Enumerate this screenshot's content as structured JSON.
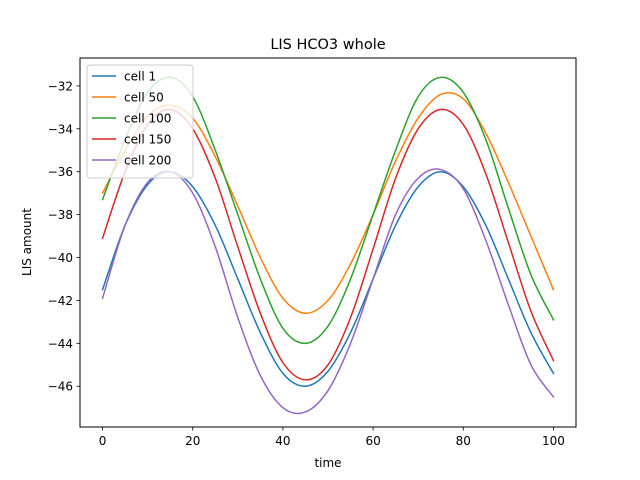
{
  "chart_data": {
    "type": "line",
    "title": "LIS HCO3 whole",
    "xlabel": "time",
    "ylabel": "LIS amount",
    "xlim": [
      -5,
      105
    ],
    "ylim": [
      -47.9,
      -30.7
    ],
    "xticks": [
      0,
      20,
      40,
      60,
      80,
      100
    ],
    "yticks": [
      -46,
      -44,
      -42,
      -40,
      -38,
      -36,
      -34,
      -32
    ],
    "legend_position": "top-left",
    "grid": false,
    "series": [
      {
        "name": "cell 1",
        "color": "#1f77b4",
        "x": [
          0,
          5,
          10,
          15,
          20,
          25,
          30,
          35,
          40,
          45,
          50,
          55,
          60,
          65,
          70,
          75,
          80,
          85,
          90,
          95,
          100
        ],
        "y": [
          -41.5,
          -38.5,
          -36.6,
          -36.0,
          -36.7,
          -38.5,
          -41.0,
          -43.5,
          -45.4,
          -46.0,
          -45.3,
          -43.5,
          -41.0,
          -38.5,
          -36.7,
          -36.0,
          -36.7,
          -38.5,
          -41.0,
          -43.5,
          -45.4
        ]
      },
      {
        "name": "cell 50",
        "color": "#ff7f0e",
        "x": [
          0,
          5,
          10,
          15,
          20,
          25,
          30,
          35,
          40,
          45,
          50,
          55,
          60,
          65,
          70,
          75,
          80,
          85,
          90,
          95,
          100
        ],
        "y": [
          -37.0,
          -35.0,
          -33.4,
          -32.9,
          -33.5,
          -35.3,
          -37.6,
          -40.0,
          -41.9,
          -42.6,
          -42.0,
          -40.3,
          -38.0,
          -35.5,
          -33.5,
          -32.4,
          -32.6,
          -34.2,
          -36.5,
          -39.0,
          -41.5
        ]
      },
      {
        "name": "cell 100",
        "color": "#2ca02c",
        "x": [
          0,
          5,
          10,
          15,
          20,
          25,
          30,
          35,
          40,
          45,
          50,
          55,
          60,
          65,
          70,
          75,
          80,
          85,
          90,
          95,
          100
        ],
        "y": [
          -37.3,
          -34.5,
          -32.3,
          -31.6,
          -32.5,
          -35.0,
          -38.0,
          -41.0,
          -43.3,
          -44.0,
          -43.2,
          -41.0,
          -38.0,
          -35.0,
          -32.5,
          -31.6,
          -32.3,
          -34.5,
          -37.7,
          -40.8,
          -42.9
        ]
      },
      {
        "name": "cell 150",
        "color": "#d62728",
        "x": [
          0,
          5,
          10,
          15,
          20,
          25,
          30,
          35,
          40,
          45,
          50,
          55,
          60,
          65,
          70,
          75,
          80,
          85,
          90,
          95,
          100
        ],
        "y": [
          -39.1,
          -36.0,
          -33.8,
          -33.1,
          -34.0,
          -36.3,
          -39.5,
          -42.6,
          -44.9,
          -45.7,
          -45.0,
          -42.8,
          -39.6,
          -36.3,
          -34.0,
          -33.1,
          -33.8,
          -36.1,
          -39.3,
          -42.5,
          -44.8
        ]
      },
      {
        "name": "cell 200",
        "color": "#9467bd",
        "x": [
          0,
          5,
          10,
          15,
          20,
          25,
          30,
          35,
          40,
          45,
          50,
          55,
          60,
          65,
          70,
          75,
          80,
          85,
          90,
          95,
          100
        ],
        "y": [
          -41.9,
          -38.5,
          -36.5,
          -36.0,
          -37.0,
          -39.5,
          -42.8,
          -45.5,
          -47.0,
          -47.2,
          -46.2,
          -44.0,
          -41.0,
          -38.0,
          -36.3,
          -35.9,
          -36.8,
          -39.2,
          -42.2,
          -45.0,
          -46.5
        ]
      }
    ]
  }
}
